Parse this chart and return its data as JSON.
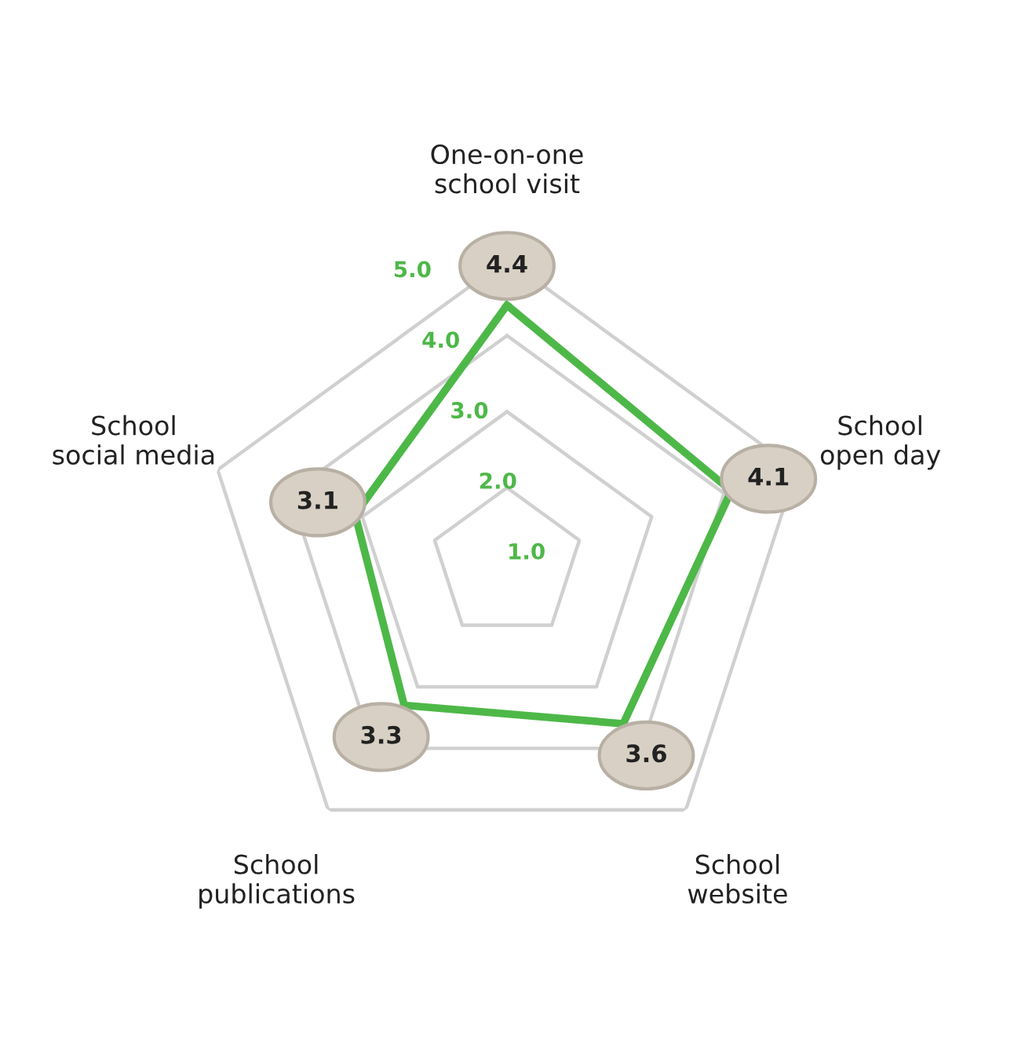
{
  "chart_data": {
    "type": "radar",
    "categories": [
      "One-on-one\nschool visit",
      "School\nopen day",
      "School\nwebsite",
      "School\npublications",
      "School\nsocial media"
    ],
    "series": [
      {
        "color": "#4db848",
        "values": [
          4.4,
          4.1,
          3.6,
          3.3,
          3.1
        ]
      }
    ],
    "ylim": [
      1,
      5
    ],
    "yticks": [
      {
        "value": 1,
        "label": "1.0"
      },
      {
        "value": 2,
        "label": "2.0"
      },
      {
        "value": 3,
        "label": "3.0"
      },
      {
        "value": 4,
        "label": "4.0"
      },
      {
        "value": 5,
        "label": "5.0"
      }
    ],
    "grid": true,
    "data_labels": true,
    "legend": false,
    "marker": "none"
  }
}
